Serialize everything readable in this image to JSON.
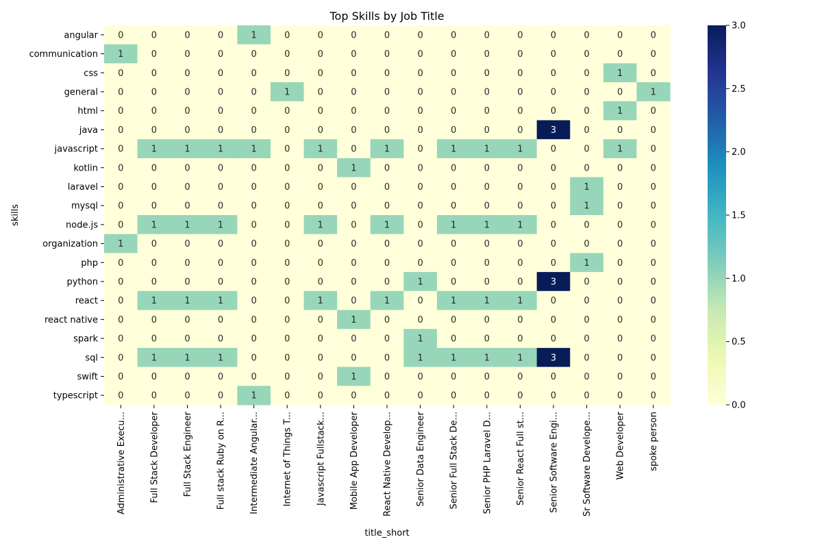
{
  "chart_data": {
    "type": "heatmap",
    "title": "Top Skills by Job Title",
    "xlabel": "title_short",
    "ylabel": "skills",
    "x_categories": [
      "Administrative Execu...",
      "Full Stack Developer",
      "Full Stack Engineer",
      "Full stack Ruby on R...",
      "Intermediate Angular...",
      "Internet of Things T...",
      "Javascript Fullstack...",
      "Mobile App Developer",
      "React Native Develop...",
      "Senior Data Engineer",
      "Senior Full Stack De...",
      "Senior PHP Laravel D...",
      "Senior React Full st...",
      "Senior Software Engi...",
      "Sr Software Develope...",
      "Web Developer",
      "spoke person"
    ],
    "y_categories": [
      "angular",
      "communication",
      "css",
      "general",
      "html",
      "java",
      "javascript",
      "kotlin",
      "laravel",
      "mysql",
      "node.js",
      "organization",
      "php",
      "python",
      "react",
      "react native",
      "spark",
      "sql",
      "swift",
      "typescript"
    ],
    "values": [
      [
        0,
        0,
        0,
        0,
        1,
        0,
        0,
        0,
        0,
        0,
        0,
        0,
        0,
        0,
        0,
        0,
        0
      ],
      [
        1,
        0,
        0,
        0,
        0,
        0,
        0,
        0,
        0,
        0,
        0,
        0,
        0,
        0,
        0,
        0,
        0
      ],
      [
        0,
        0,
        0,
        0,
        0,
        0,
        0,
        0,
        0,
        0,
        0,
        0,
        0,
        0,
        0,
        1,
        0
      ],
      [
        0,
        0,
        0,
        0,
        0,
        1,
        0,
        0,
        0,
        0,
        0,
        0,
        0,
        0,
        0,
        0,
        1
      ],
      [
        0,
        0,
        0,
        0,
        0,
        0,
        0,
        0,
        0,
        0,
        0,
        0,
        0,
        0,
        0,
        1,
        0
      ],
      [
        0,
        0,
        0,
        0,
        0,
        0,
        0,
        0,
        0,
        0,
        0,
        0,
        0,
        3,
        0,
        0,
        0
      ],
      [
        0,
        1,
        1,
        1,
        1,
        0,
        1,
        0,
        1,
        0,
        1,
        1,
        1,
        0,
        0,
        1,
        0
      ],
      [
        0,
        0,
        0,
        0,
        0,
        0,
        0,
        1,
        0,
        0,
        0,
        0,
        0,
        0,
        0,
        0,
        0
      ],
      [
        0,
        0,
        0,
        0,
        0,
        0,
        0,
        0,
        0,
        0,
        0,
        0,
        0,
        0,
        1,
        0,
        0
      ],
      [
        0,
        0,
        0,
        0,
        0,
        0,
        0,
        0,
        0,
        0,
        0,
        0,
        0,
        0,
        1,
        0,
        0
      ],
      [
        0,
        1,
        1,
        1,
        0,
        0,
        1,
        0,
        1,
        0,
        1,
        1,
        1,
        0,
        0,
        0,
        0
      ],
      [
        1,
        0,
        0,
        0,
        0,
        0,
        0,
        0,
        0,
        0,
        0,
        0,
        0,
        0,
        0,
        0,
        0
      ],
      [
        0,
        0,
        0,
        0,
        0,
        0,
        0,
        0,
        0,
        0,
        0,
        0,
        0,
        0,
        1,
        0,
        0
      ],
      [
        0,
        0,
        0,
        0,
        0,
        0,
        0,
        0,
        0,
        1,
        0,
        0,
        0,
        3,
        0,
        0,
        0
      ],
      [
        0,
        1,
        1,
        1,
        0,
        0,
        1,
        0,
        1,
        0,
        1,
        1,
        1,
        0,
        0,
        0,
        0
      ],
      [
        0,
        0,
        0,
        0,
        0,
        0,
        0,
        1,
        0,
        0,
        0,
        0,
        0,
        0,
        0,
        0,
        0
      ],
      [
        0,
        0,
        0,
        0,
        0,
        0,
        0,
        0,
        0,
        1,
        0,
        0,
        0,
        0,
        0,
        0,
        0
      ],
      [
        0,
        1,
        1,
        1,
        0,
        0,
        0,
        0,
        0,
        1,
        1,
        1,
        1,
        3,
        0,
        0,
        0
      ],
      [
        0,
        0,
        0,
        0,
        0,
        0,
        0,
        1,
        0,
        0,
        0,
        0,
        0,
        0,
        0,
        0,
        0
      ],
      [
        0,
        0,
        0,
        0,
        1,
        0,
        0,
        0,
        0,
        0,
        0,
        0,
        0,
        0,
        0,
        0,
        0
      ]
    ],
    "colorbar": {
      "range": [
        0,
        3
      ],
      "ticks": [
        0.0,
        0.5,
        1.0,
        1.5,
        2.0,
        2.5,
        3.0
      ],
      "tick_labels": [
        "0.0",
        "0.5",
        "1.0",
        "1.5",
        "2.0",
        "2.5",
        "3.0"
      ],
      "colormap": "YlGnBu",
      "stops": [
        "#ffffd9",
        "#edf8b1",
        "#c7e9b4",
        "#7fcdbb",
        "#41b6c4",
        "#1d91c0",
        "#225ea8",
        "#253494",
        "#081d58"
      ]
    },
    "annotations": true,
    "grid": false
  }
}
